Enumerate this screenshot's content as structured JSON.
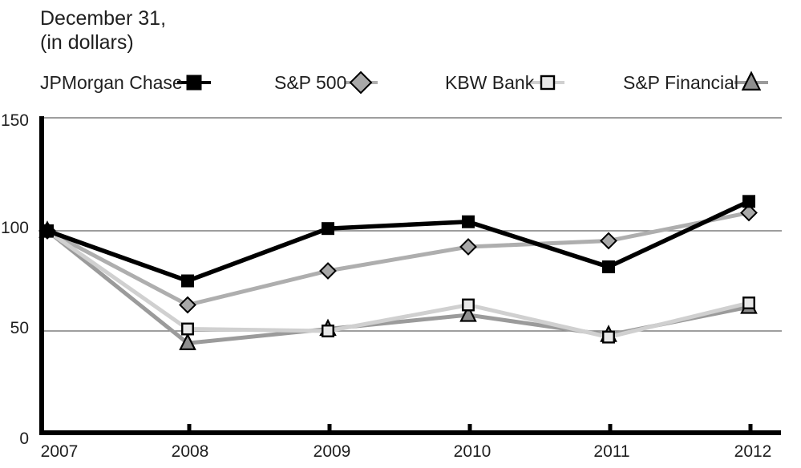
{
  "title": {
    "line1": "December 31,",
    "line2": "(in dollars)"
  },
  "chart_data": {
    "type": "line",
    "x": [
      2007,
      2008,
      2009,
      2010,
      2011,
      2012
    ],
    "xlabel": "",
    "ylabel": "",
    "ylim": [
      0,
      150
    ],
    "yticks": [
      0,
      50,
      100,
      150
    ],
    "grid": true,
    "legend_position": "top",
    "gridline_color": "#7f7f7f",
    "axis_color": "#000000",
    "series": [
      {
        "name": "JPMorgan Chase",
        "marker": "filled-square",
        "line_color": "#000000",
        "marker_fill": "#000000",
        "values": [
          100,
          75,
          101,
          104,
          82,
          113
        ]
      },
      {
        "name": "S&P 500",
        "marker": "diamond",
        "line_color": "#aeaeae",
        "marker_fill": "#a8a8a8",
        "values": [
          100,
          63,
          80,
          92,
          95,
          108
        ]
      },
      {
        "name": "KBW Bank",
        "marker": "open-square",
        "line_color": "#d0d0d0",
        "marker_fill": "#e8e8e8",
        "values": [
          100,
          51,
          50,
          63,
          47,
          64
        ]
      },
      {
        "name": "S&P Financial",
        "marker": "triangle",
        "line_color": "#9b9b9b",
        "marker_fill": "#8e8e8e",
        "values": [
          100,
          44,
          51,
          58,
          48,
          62
        ]
      }
    ]
  }
}
